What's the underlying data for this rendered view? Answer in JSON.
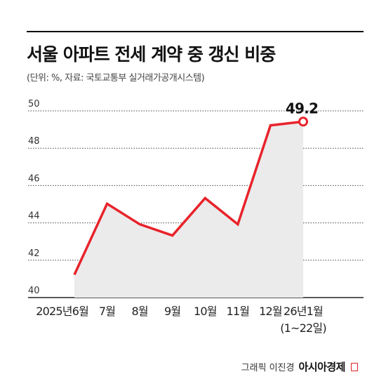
{
  "header": {
    "title": "서울 아파트 전세 계약 중 갱신 비중",
    "source": "(단위: %, 자료: 국토교통부 실거래가공개시스템)"
  },
  "credit": {
    "text": "그래픽 이진경",
    "brand": "아시아경제"
  },
  "colors": {
    "line": "#e8232b",
    "fill": "#ebebeb",
    "grid": "#444444"
  },
  "chart_data": {
    "type": "area",
    "categories": [
      "2025년6월",
      "7월",
      "8월",
      "9월",
      "10월",
      "11월",
      "12월",
      "26년1월"
    ],
    "category_sublabels": [
      "",
      "",
      "",
      "",
      "",
      "",
      "",
      "(1~22일)"
    ],
    "series": [
      {
        "values": [
          41.0,
          44.8,
          43.7,
          43.1,
          45.1,
          43.7,
          49.0,
          49.2
        ]
      }
    ],
    "data_labels": [
      {
        "index": 7,
        "text": "49.2"
      }
    ],
    "yticks": [
      40,
      42,
      44,
      46,
      48,
      50
    ],
    "ylim": [
      40,
      50
    ],
    "grid": true,
    "last_point_marker": true
  }
}
